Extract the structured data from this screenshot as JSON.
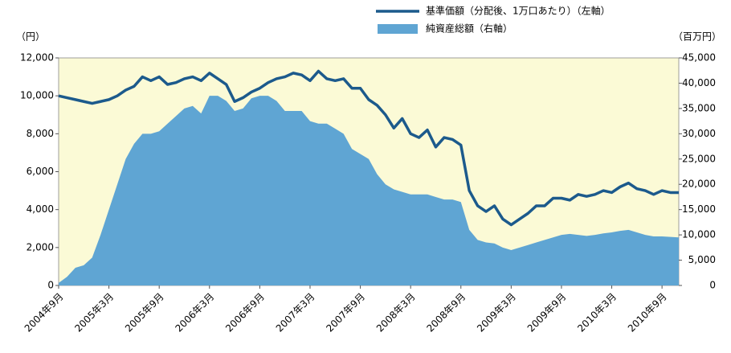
{
  "chart_data": {
    "type": "line-area",
    "y_label": "（円）",
    "y2_label": "（百万円）",
    "categories": [
      "2004年9月",
      null,
      null,
      null,
      null,
      null,
      "2005年3月",
      null,
      null,
      null,
      null,
      null,
      "2005年9月",
      null,
      null,
      null,
      null,
      null,
      "2006年3月",
      null,
      null,
      null,
      null,
      null,
      "2006年9月",
      null,
      null,
      null,
      null,
      null,
      "2007年3月",
      null,
      null,
      null,
      null,
      null,
      "2007年9月",
      null,
      null,
      null,
      null,
      null,
      "2008年3月",
      null,
      null,
      null,
      null,
      null,
      "2008年9月",
      null,
      null,
      null,
      null,
      null,
      "2009年3月",
      null,
      null,
      null,
      null,
      null,
      "2009年9月",
      null,
      null,
      null,
      null,
      null,
      "2010年3月",
      null,
      null,
      null,
      null,
      null,
      "2010年9月",
      null,
      null
    ],
    "series": [
      {
        "name": "基準価額（分配後、1万口あたり）（左軸）",
        "color": "#1c5a8c",
        "kind": "line",
        "values": [
          10000,
          9900,
          9800,
          9700,
          9600,
          9700,
          9800,
          10000,
          10300,
          10500,
          11000,
          10800,
          11000,
          10600,
          10700,
          10900,
          11000,
          10800,
          11200,
          10900,
          10600,
          9700,
          9900,
          10200,
          10400,
          10700,
          10900,
          11000,
          11200,
          11100,
          10800,
          11300,
          10900,
          10800,
          10900,
          10400,
          10400,
          9800,
          9500,
          9000,
          8300,
          8800,
          8000,
          7800,
          8200,
          7300,
          7800,
          7700,
          7400,
          5000,
          4200,
          3900,
          4200,
          3500,
          3200,
          3500,
          3800,
          4200,
          4200,
          4600,
          4600,
          4500,
          4800,
          4700,
          4800,
          5000,
          4900,
          5200,
          5400,
          5100,
          5000,
          4800,
          5000,
          4900,
          4900
        ]
      },
      {
        "name": "純資産総額（右軸）",
        "color": "#5fa5d3",
        "kind": "area",
        "axis": "y2",
        "values": [
          500,
          1700,
          3500,
          4000,
          5500,
          10000,
          15000,
          20000,
          25000,
          28000,
          30000,
          30000,
          30500,
          32000,
          33500,
          35000,
          35500,
          34000,
          37500,
          37500,
          36500,
          34500,
          35000,
          37000,
          37500,
          37500,
          36500,
          34500,
          34500,
          34500,
          32500,
          32000,
          32000,
          31000,
          30000,
          27000,
          26000,
          25000,
          22000,
          20000,
          19000,
          18500,
          18000,
          18000,
          18000,
          17500,
          17000,
          17000,
          16500,
          11000,
          9000,
          8500,
          8300,
          7500,
          7000,
          7500,
          8000,
          8500,
          9000,
          9500,
          10000,
          10200,
          10000,
          9800,
          10000,
          10300,
          10500,
          10800,
          11000,
          10500,
          10000,
          9700,
          9700,
          9600,
          9500
        ]
      }
    ],
    "ylim": [
      0,
      12000
    ],
    "yticks": [
      0,
      {
        "value": 2000,
        "label": "2,000"
      },
      {
        "value": 4000,
        "label": "4,000"
      },
      {
        "value": 6000,
        "label": "6,000"
      },
      {
        "value": 8000,
        "label": "8,000"
      },
      {
        "value": 10000,
        "label": "10,000"
      },
      {
        "value": 12000,
        "label": "12,000"
      }
    ],
    "y2lim": [
      0,
      45000
    ],
    "y2ticks": [
      0,
      {
        "value": 5000,
        "label": "5,000"
      },
      {
        "value": 10000,
        "label": "10,000"
      },
      {
        "value": 15000,
        "label": "15,000"
      },
      {
        "value": 20000,
        "label": "20,000"
      },
      {
        "value": 25000,
        "label": "25,000"
      },
      {
        "value": 30000,
        "label": "30,000"
      },
      {
        "value": 35000,
        "label": "35,000"
      },
      {
        "value": 40000,
        "label": "40,000"
      },
      {
        "value": 45000,
        "label": "45,000"
      }
    ],
    "plot_background": "#fbfad6"
  }
}
